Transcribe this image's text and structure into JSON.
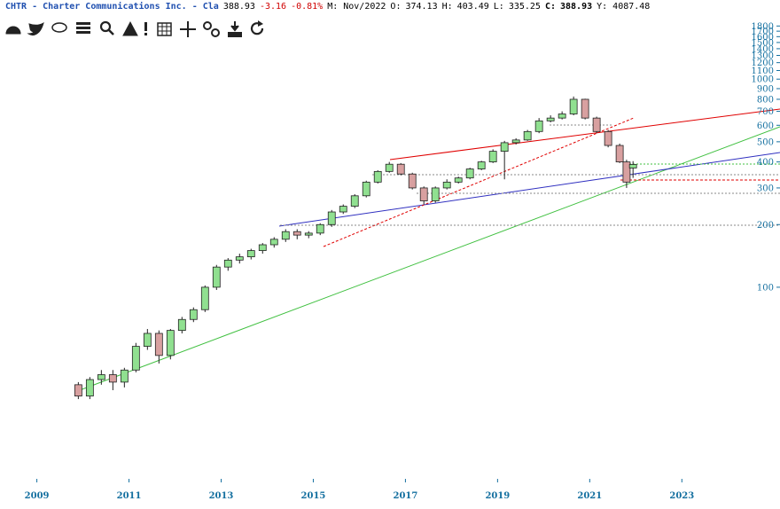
{
  "header": {
    "symbol": "CHTR - Charter Communications Inc. - Cla",
    "change": "-3.16",
    "change_pct": "-0.81%",
    "month": "M: Nov/2022",
    "open_label": "O:",
    "high_label": "H:",
    "low_label": "L:",
    "close_label": "C:",
    "year": "Y: 4087.48"
  },
  "chart_data": {
    "type": "candlestick",
    "log_scale": true,
    "up_color": "#90e090",
    "down_color": "#d8a0a0",
    "x": [
      2009.9,
      2010.15,
      2010.4,
      2010.65,
      2010.9,
      2011.15,
      2011.4,
      2011.65,
      2011.9,
      2012.15,
      2012.4,
      2012.65,
      2012.9,
      2013.15,
      2013.4,
      2013.65,
      2013.9,
      2014.15,
      2014.4,
      2014.65,
      2014.9,
      2015.15,
      2015.4,
      2015.65,
      2015.9,
      2016.15,
      2016.4,
      2016.65,
      2016.9,
      2017.15,
      2017.4,
      2017.65,
      2017.9,
      2018.15,
      2018.4,
      2018.65,
      2018.9,
      2019.15,
      2019.4,
      2019.65,
      2019.9,
      2020.15,
      2020.4,
      2020.65,
      2020.9,
      2021.15,
      2021.4,
      2021.65,
      2021.8,
      2021.94
    ],
    "open": [
      34,
      30,
      36,
      38,
      35,
      40,
      52,
      60,
      47,
      62,
      70,
      78,
      100,
      125,
      135,
      140,
      150,
      160,
      170,
      185,
      178,
      182,
      200,
      230,
      245,
      275,
      320,
      360,
      390,
      350,
      300,
      260,
      300,
      320,
      335,
      370,
      400,
      450,
      495,
      510,
      560,
      630,
      650,
      680,
      800,
      650,
      560,
      480,
      400,
      374.13
    ],
    "high": [
      35,
      37,
      40,
      40,
      41,
      54,
      63,
      62,
      63,
      72,
      80,
      102,
      128,
      138,
      145,
      153,
      163,
      174,
      190,
      190,
      186,
      203,
      235,
      250,
      280,
      325,
      365,
      400,
      395,
      355,
      305,
      305,
      330,
      340,
      375,
      405,
      460,
      505,
      520,
      570,
      650,
      670,
      700,
      825,
      805,
      660,
      570,
      490,
      410,
      403.49
    ],
    "low": [
      29,
      29,
      34,
      32,
      33,
      39,
      50,
      43,
      45,
      60,
      68,
      76,
      97,
      120,
      130,
      136,
      145,
      155,
      165,
      170,
      172,
      178,
      195,
      225,
      240,
      270,
      315,
      355,
      345,
      295,
      250,
      255,
      295,
      315,
      330,
      365,
      395,
      330,
      485,
      505,
      550,
      620,
      640,
      670,
      640,
      550,
      470,
      395,
      300,
      335.25
    ],
    "close": [
      30,
      36,
      38,
      35,
      40,
      52,
      60,
      47,
      62,
      70,
      78,
      100,
      125,
      135,
      140,
      150,
      160,
      170,
      185,
      178,
      182,
      200,
      230,
      245,
      275,
      320,
      360,
      390,
      350,
      300,
      260,
      300,
      320,
      335,
      370,
      400,
      450,
      495,
      510,
      560,
      630,
      650,
      680,
      800,
      650,
      560,
      480,
      400,
      320,
      388.93
    ],
    "xlim": [
      2008.2,
      2025.13
    ],
    "xticks": [
      2009,
      2011,
      2013,
      2015,
      2017,
      2019,
      2021,
      2023
    ],
    "ylim": [
      12,
      2400
    ],
    "yticks": [
      100,
      200,
      300,
      400,
      500,
      600,
      700,
      800,
      900,
      1000,
      1100,
      1200,
      1300,
      1400,
      1500,
      1600,
      1700,
      1800
    ]
  }
}
